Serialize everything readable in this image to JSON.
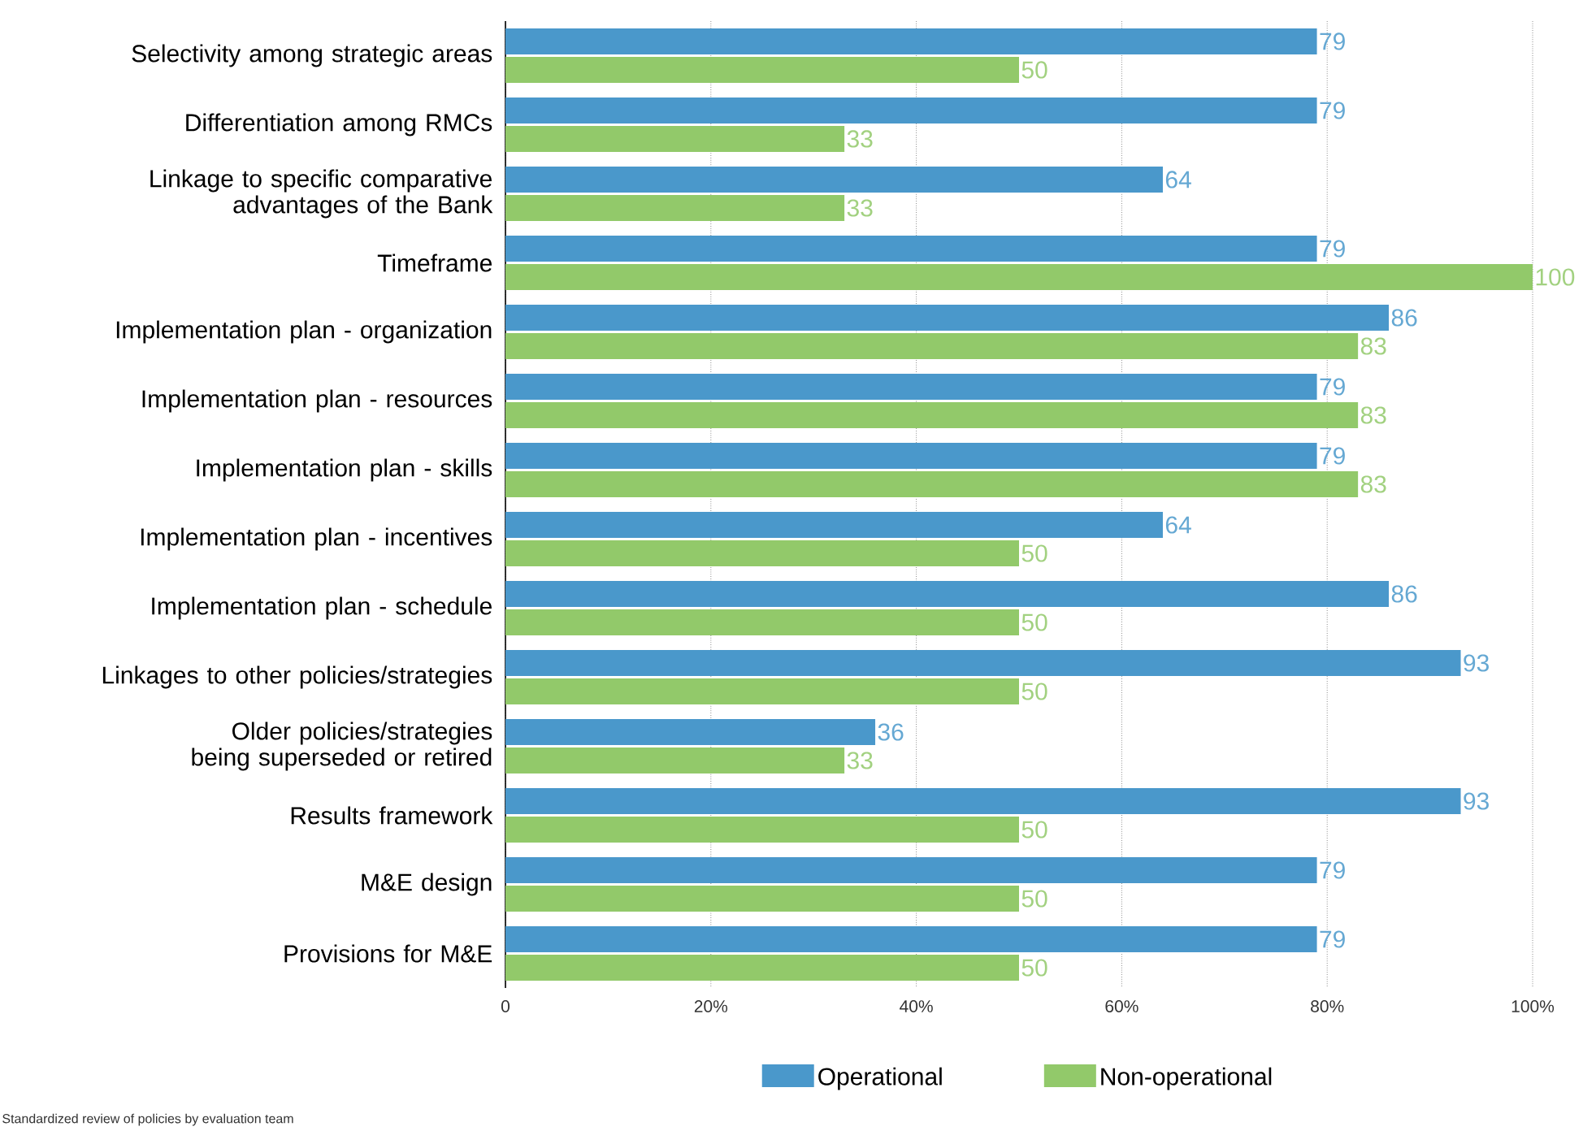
{
  "chart_data": {
    "type": "bar",
    "orientation": "horizontal",
    "categories": [
      "Selectivity among strategic areas",
      "Differentiation among RMCs",
      "Linkage to specific comparative advantages of the Bank",
      "Timeframe",
      "Implementation plan - organization",
      "Implementation plan - resources",
      "Implementation plan - skills",
      "Implementation plan - incentives",
      "Implementation plan - schedule",
      "Linkages to other policies/strategies",
      "Older policies/strategies being superseded or retired",
      "Results framework",
      "M&E design",
      "Provisions for M&E"
    ],
    "series": [
      {
        "name": "Operational",
        "color": "#4a98cb",
        "values": [
          79,
          79,
          64,
          79,
          86,
          79,
          79,
          64,
          86,
          93,
          36,
          93,
          79,
          79
        ]
      },
      {
        "name": "Non-operational",
        "color": "#92c96a",
        "values": [
          50,
          33,
          33,
          100,
          83,
          83,
          83,
          50,
          50,
          50,
          33,
          50,
          50,
          50
        ]
      }
    ],
    "xlim": [
      0,
      100
    ],
    "xticks": [
      {
        "value": 0,
        "label": "0"
      },
      {
        "value": 20,
        "label": "20%"
      },
      {
        "value": 40,
        "label": "40%"
      },
      {
        "value": 60,
        "label": "60%"
      },
      {
        "value": 80,
        "label": "80%"
      },
      {
        "value": 100,
        "label": "100%"
      }
    ],
    "grid": "x",
    "legend": "bottom",
    "data_labels": true,
    "annotations": [
      "Standardized review of policies by evaluation team"
    ]
  }
}
